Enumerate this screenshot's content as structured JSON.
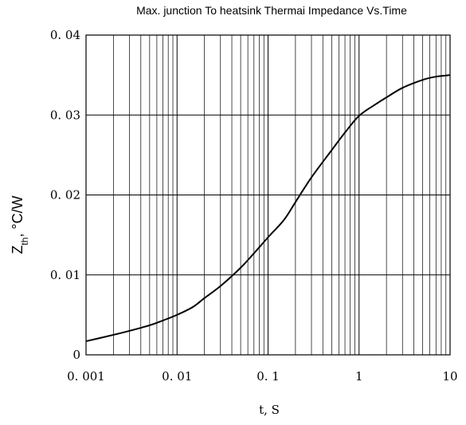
{
  "chart_data": {
    "type": "line",
    "title": "Max. junction To heatsink Thermai Impedance Vs.Time",
    "xlabel": "t, S",
    "ylabel_main": "Z",
    "ylabel_sub": "th",
    "ylabel_rest": ", °C/W",
    "x_scale": "log",
    "xlim": [
      0.001,
      10
    ],
    "ylim": [
      0,
      0.04
    ],
    "grid": true,
    "x_ticks": [
      {
        "value": 0.001,
        "label": "0. 001"
      },
      {
        "value": 0.01,
        "label": "0. 01"
      },
      {
        "value": 0.1,
        "label": "0. 1"
      },
      {
        "value": 1,
        "label": "1"
      },
      {
        "value": 10,
        "label": "10"
      }
    ],
    "y_ticks": [
      {
        "value": 0,
        "label": "0"
      },
      {
        "value": 0.01,
        "label": "0. 01"
      },
      {
        "value": 0.02,
        "label": "0. 02"
      },
      {
        "value": 0.03,
        "label": "0. 03"
      },
      {
        "value": 0.04,
        "label": "0. 04"
      }
    ],
    "series": [
      {
        "color": "#000000",
        "x": [
          0.001,
          0.002,
          0.003,
          0.005,
          0.007,
          0.01,
          0.015,
          0.02,
          0.03,
          0.05,
          0.07,
          0.1,
          0.15,
          0.2,
          0.3,
          0.5,
          0.7,
          1,
          1.5,
          2,
          3,
          5,
          7,
          10
        ],
        "y": [
          0.0017,
          0.0025,
          0.003,
          0.0037,
          0.0043,
          0.005,
          0.006,
          0.0071,
          0.0086,
          0.0109,
          0.0127,
          0.0147,
          0.0169,
          0.0191,
          0.0222,
          0.0256,
          0.0278,
          0.0299,
          0.0313,
          0.0322,
          0.0334,
          0.0344,
          0.0348,
          0.035
        ]
      }
    ]
  }
}
